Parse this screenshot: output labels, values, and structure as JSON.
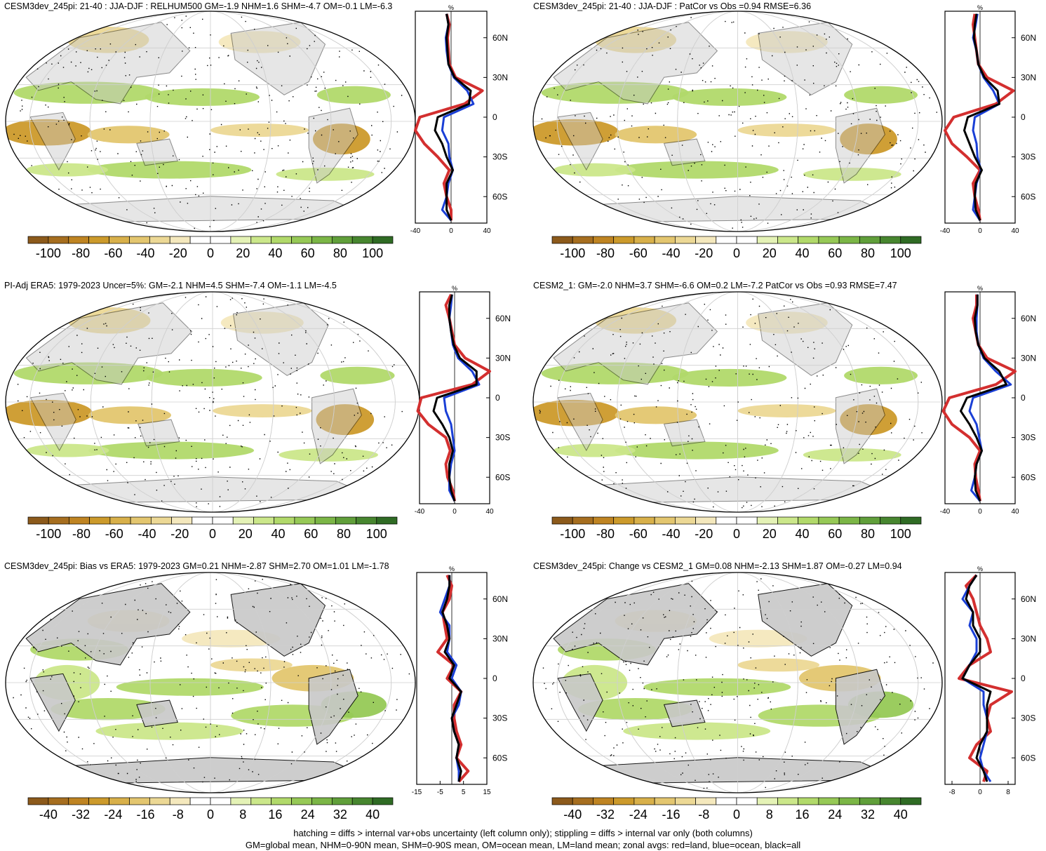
{
  "footnote": {
    "line1": "hatching = diffs > internal var+obs uncertainty (left column only); stippling = diffs > internal var only (both columns)",
    "line2": "GM=global mean, NHM=0-90N mean, SHM=0-90S mean, OM=ocean mean, LM=land mean; zonal avgs: red=land, blue=ocean, black=all"
  },
  "colors": {
    "palette": [
      "#8c5a1b",
      "#a66e1f",
      "#bf8422",
      "#cc9a2b",
      "#d8b04a",
      "#e3c66f",
      "#ecd895",
      "#f4e8bd",
      "#ffffff",
      "#ffffff",
      "#e4f2b6",
      "#cbe78a",
      "#b1d96a",
      "#96c956",
      "#7bb646",
      "#609f3a",
      "#47862f",
      "#2f6b24"
    ],
    "land_mask": "#c8c8c8",
    "land_line": "#d32f2f",
    "ocean_line": "#1a3fd6",
    "all_line": "#000000"
  },
  "chart_data": [
    {
      "type": "map",
      "title": "CESM3dev_245pi: 21-40 : JJA-DJF : RELHUM500 GM=-1.9 NHM=1.6 SHM=-4.7 OM=-0.1 LM=-6.3",
      "colorbar_labels": [
        "-100",
        "-80",
        "-60",
        "-40",
        "-20",
        "0",
        "20",
        "40",
        "60",
        "80",
        "100"
      ],
      "zonal": {
        "unit": "%",
        "xlim": [
          -40,
          40
        ],
        "xticks": [
          "-40",
          "0",
          "40"
        ],
        "lat_ticks": [
          "60N",
          "30N",
          "0",
          "30S",
          "60S"
        ],
        "lat": [
          78,
          70,
          60,
          50,
          40,
          30,
          20,
          10,
          0,
          -10,
          -20,
          -30,
          -40,
          -50,
          -60,
          -70,
          -78
        ],
        "land": [
          -5,
          -2,
          -4,
          -3,
          -2,
          5,
          35,
          15,
          -35,
          -40,
          -30,
          -15,
          -2,
          -8,
          -5,
          0,
          0
        ],
        "ocean": [
          -5,
          -3,
          -6,
          -5,
          -3,
          3,
          18,
          25,
          -8,
          -10,
          -3,
          -2,
          2,
          -3,
          -5,
          -10,
          0
        ],
        "all": [
          -5,
          -3,
          -5,
          -4,
          -3,
          4,
          22,
          20,
          -15,
          -18,
          -10,
          -5,
          2,
          -5,
          -5,
          -5,
          0
        ]
      }
    },
    {
      "type": "map",
      "title": "CESM3dev_245pi: 21-40 : JJA-DJF : PatCor vs Obs =0.94 RMSE=6.36",
      "colorbar_labels": [
        "-100",
        "-80",
        "-60",
        "-40",
        "-20",
        "0",
        "20",
        "40",
        "60",
        "80",
        "100"
      ],
      "zonal": {
        "unit": "%",
        "xlim": [
          -40,
          40
        ],
        "xticks": [
          "-40",
          "0",
          "40"
        ],
        "lat_ticks": [
          "60N",
          "30N",
          "0",
          "30S",
          "60S"
        ],
        "lat": [
          78,
          70,
          60,
          50,
          40,
          30,
          20,
          10,
          0,
          -10,
          -20,
          -30,
          -40,
          -50,
          -60,
          -70,
          -78
        ],
        "land": [
          -6,
          -8,
          -6,
          -4,
          -2,
          8,
          38,
          18,
          -30,
          -40,
          -32,
          -15,
          0,
          -8,
          -6,
          -2,
          0
        ],
        "ocean": [
          -3,
          -5,
          -8,
          -4,
          -2,
          4,
          15,
          22,
          -6,
          -8,
          -4,
          -3,
          1,
          -4,
          -6,
          -8,
          0
        ],
        "all": [
          -4,
          -6,
          -7,
          -4,
          -2,
          5,
          20,
          22,
          -14,
          -18,
          -12,
          -6,
          2,
          -5,
          -6,
          -5,
          0
        ]
      }
    },
    {
      "type": "map",
      "title": "PI-Adj ERA5: 1979-2023 Uncer=5%: GM=-2.1 NHM=4.5 SHM=-7.4 OM=-1.1 LM=-4.5",
      "colorbar_labels": [
        "-100",
        "-80",
        "-60",
        "-40",
        "-20",
        "0",
        "20",
        "40",
        "60",
        "80",
        "100"
      ],
      "zonal": {
        "unit": "%",
        "xlim": [
          -40,
          40
        ],
        "xticks": [
          "-40",
          "0",
          "40"
        ],
        "lat_ticks": [
          "60N",
          "30N",
          "0",
          "30S",
          "60S"
        ],
        "lat": [
          78,
          70,
          60,
          50,
          40,
          30,
          20,
          10,
          0,
          -10,
          -20,
          -30,
          -40,
          -50,
          -60,
          -70,
          -78
        ],
        "land": [
          -4,
          -10,
          -6,
          -3,
          0,
          12,
          40,
          20,
          -38,
          -42,
          -30,
          -10,
          -5,
          -10,
          -8,
          -2,
          0
        ],
        "ocean": [
          -3,
          -4,
          -6,
          -4,
          -2,
          4,
          20,
          28,
          -12,
          -10,
          -4,
          -2,
          0,
          -4,
          -6,
          -6,
          0
        ],
        "all": [
          -3,
          -6,
          -6,
          -4,
          -1,
          6,
          25,
          25,
          -20,
          -24,
          -14,
          -6,
          -2,
          -6,
          -6,
          -4,
          0
        ]
      }
    },
    {
      "type": "map",
      "title": "CESM2_1: GM=-2.0 NHM=3.7 SHM=-6.6 OM=0.2 LM=-7.2 PatCor vs Obs =0.93 RMSE=7.47",
      "colorbar_labels": [
        "-100",
        "-80",
        "-60",
        "-40",
        "-20",
        "0",
        "20",
        "40",
        "60",
        "80",
        "100"
      ],
      "zonal": {
        "unit": "%",
        "xlim": [
          -40,
          40
        ],
        "xticks": [
          "-40",
          "0",
          "40"
        ],
        "lat_ticks": [
          "60N",
          "30N",
          "0",
          "30S",
          "60S"
        ],
        "lat": [
          78,
          70,
          60,
          50,
          40,
          30,
          20,
          10,
          0,
          -10,
          -20,
          -30,
          -40,
          -50,
          -60,
          -70,
          -78
        ],
        "land": [
          -4,
          -4,
          -8,
          -5,
          -2,
          8,
          40,
          18,
          -35,
          -42,
          -32,
          -12,
          0,
          -6,
          -5,
          -2,
          0
        ],
        "ocean": [
          -3,
          -3,
          -4,
          -4,
          -2,
          4,
          18,
          35,
          -8,
          -12,
          -4,
          -1,
          2,
          -4,
          -6,
          -10,
          0
        ],
        "all": [
          -3,
          -3,
          -6,
          -5,
          -2,
          5,
          22,
          30,
          -15,
          -22,
          -12,
          -4,
          2,
          -4,
          -6,
          -5,
          0
        ]
      }
    },
    {
      "type": "map",
      "title": "CESM3dev_245pi: Bias vs ERA5: 1979-2023 GM=0.21 NHM=-2.87 SHM=2.70 OM=1.01 LM=-1.78",
      "colorbar_labels": [
        "-40",
        "-32",
        "-24",
        "-16",
        "-8",
        "0",
        "8",
        "16",
        "24",
        "32",
        "40"
      ],
      "zonal": {
        "unit": "%",
        "xlim": [
          -15,
          15
        ],
        "xticks": [
          "-15",
          "-5",
          "5",
          "15"
        ],
        "lat_ticks": [
          "60N",
          "30N",
          "0",
          "30S",
          "60S"
        ],
        "lat": [
          78,
          70,
          60,
          50,
          40,
          30,
          20,
          10,
          0,
          -10,
          -20,
          -30,
          -40,
          -50,
          -60,
          -70,
          -78
        ],
        "land": [
          -2,
          0,
          -1,
          -4,
          -3,
          -2,
          -6,
          1,
          -2,
          4,
          1,
          1,
          2,
          4,
          2,
          7,
          3
        ],
        "ocean": [
          -1,
          -1,
          -3,
          -5,
          -1,
          -1,
          -2,
          2,
          0,
          4,
          3,
          0,
          1,
          3,
          2,
          3,
          3
        ],
        "all": [
          -1,
          -1,
          -2,
          -4,
          -2,
          -1,
          -3,
          1,
          -1,
          4,
          2,
          0,
          1,
          3,
          2,
          4,
          3
        ]
      }
    },
    {
      "type": "map",
      "title": "CESM3dev_245pi: Change vs CESM2_1 GM=0.08 NHM=-2.13 SHM=1.87 OM=-0.27 LM=0.94",
      "colorbar_labels": [
        "-40",
        "-32",
        "-24",
        "-16",
        "-8",
        "0",
        "8",
        "16",
        "24",
        "32",
        "40"
      ],
      "zonal": {
        "unit": "%",
        "xlim": [
          -10,
          10
        ],
        "xticks": [
          "-8",
          "0",
          "8"
        ],
        "lat_ticks": [
          "60N",
          "30N",
          "0",
          "30S",
          "60S"
        ],
        "lat": [
          78,
          70,
          60,
          50,
          40,
          30,
          20,
          10,
          0,
          -10,
          -20,
          -30,
          -40,
          -50,
          -60,
          -70,
          -78
        ],
        "land": [
          -1,
          -4,
          -2,
          -1,
          0,
          2,
          3,
          -3,
          -6,
          9,
          3,
          2,
          3,
          -1,
          -3,
          2,
          1
        ],
        "ocean": [
          -1,
          -3,
          -5,
          -2,
          -3,
          -1,
          -1,
          -3,
          -5,
          1,
          1,
          2,
          2,
          1,
          0,
          1,
          3
        ],
        "all": [
          -1,
          -3,
          -4,
          -2,
          -2,
          0,
          0,
          -3,
          -5,
          3,
          2,
          2,
          2,
          0,
          -1,
          1,
          2
        ]
      }
    }
  ]
}
